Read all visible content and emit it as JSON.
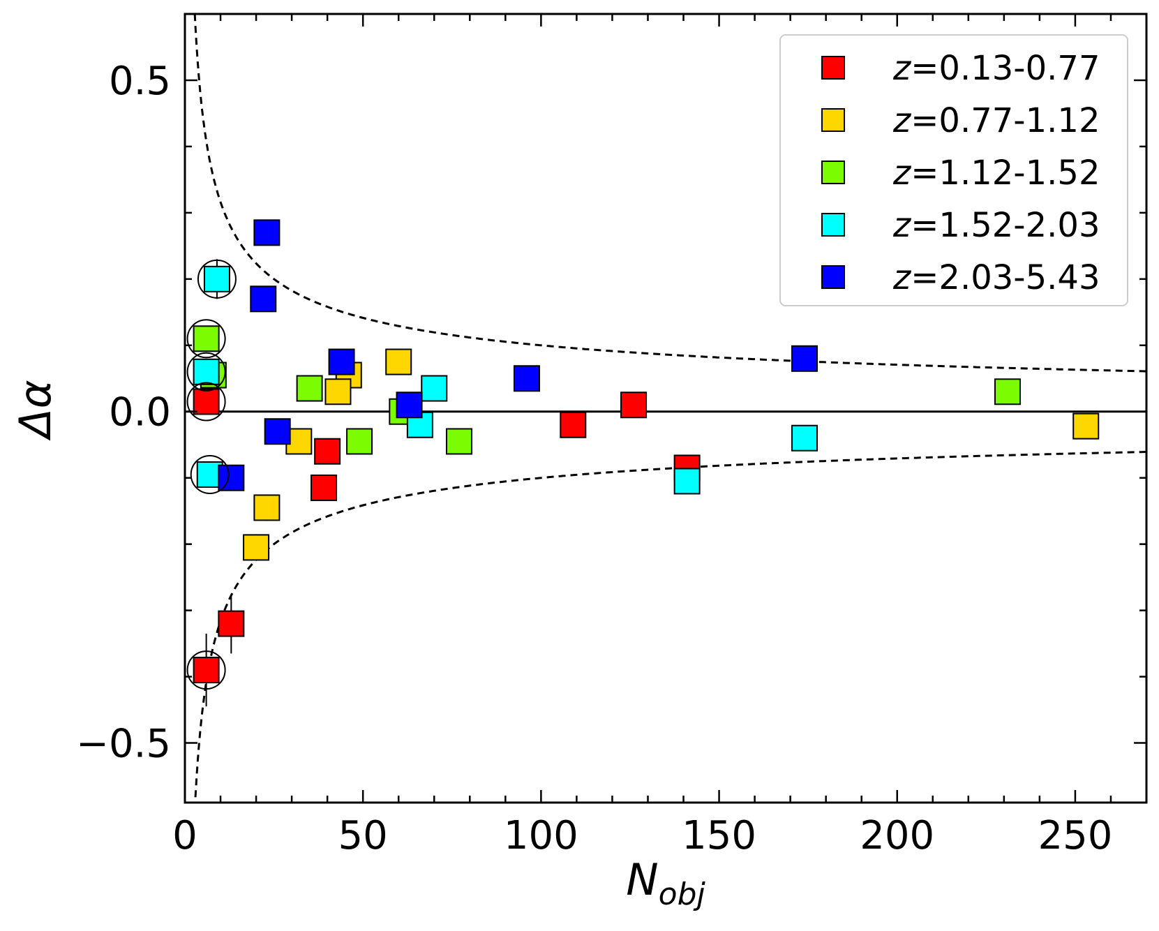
{
  "chart_data": {
    "type": "scatter",
    "title": "",
    "xlabel": "N",
    "xlabel_sub": "obj",
    "ylabel": "Δα",
    "xlim": [
      0,
      270
    ],
    "ylim": [
      -0.59,
      0.6
    ],
    "x_ticks": [
      0,
      50,
      100,
      150,
      200,
      250
    ],
    "x_tick_labels": [
      "0",
      "50",
      "100",
      "150",
      "200",
      "250"
    ],
    "y_ticks": [
      0.5,
      0.0,
      -0.5
    ],
    "y_tick_labels": [
      "0.5",
      "0.0",
      "−0.5"
    ],
    "grid": false,
    "legend_position": "top-right",
    "reference_line": {
      "y": 0.0
    },
    "envelope_curve": {
      "form": "±A/sqrt(x)",
      "A": 1.0
    },
    "series": [
      {
        "name": "z=0.13-0.77",
        "color": "#ff0000",
        "points": [
          {
            "x": 6,
            "y": 0.015
          },
          {
            "x": 13,
            "y": -0.32
          },
          {
            "x": 6,
            "y": -0.39
          },
          {
            "x": 40,
            "y": -0.06
          },
          {
            "x": 39,
            "y": -0.115
          },
          {
            "x": 109,
            "y": -0.02
          },
          {
            "x": 126,
            "y": 0.01
          },
          {
            "x": 141,
            "y": -0.085
          }
        ]
      },
      {
        "name": "z=0.77-1.12",
        "color": "#ffd700",
        "points": [
          {
            "x": 46,
            "y": 0.055
          },
          {
            "x": 43,
            "y": 0.03
          },
          {
            "x": 60,
            "y": 0.075
          },
          {
            "x": 32,
            "y": -0.045
          },
          {
            "x": 23,
            "y": -0.145
          },
          {
            "x": 20,
            "y": -0.205
          },
          {
            "x": 253,
            "y": -0.022
          }
        ]
      },
      {
        "name": "z=1.12-1.52",
        "color": "#7cfc00",
        "points": [
          {
            "x": 6,
            "y": 0.11
          },
          {
            "x": 8,
            "y": 0.055
          },
          {
            "x": 35,
            "y": 0.035
          },
          {
            "x": 61,
            "y": 0.0
          },
          {
            "x": 49,
            "y": -0.045
          },
          {
            "x": 77,
            "y": -0.045
          },
          {
            "x": 231,
            "y": 0.03
          }
        ]
      },
      {
        "name": "z=1.52-2.03",
        "color": "#00ffff",
        "points": [
          {
            "x": 9,
            "y": 0.2
          },
          {
            "x": 6,
            "y": 0.06
          },
          {
            "x": 7,
            "y": -0.095
          },
          {
            "x": 70,
            "y": 0.035
          },
          {
            "x": 66,
            "y": -0.02
          },
          {
            "x": 141,
            "y": -0.105
          },
          {
            "x": 174,
            "y": -0.04
          }
        ]
      },
      {
        "name": "z=2.03-5.43",
        "color": "#0000ff",
        "points": [
          {
            "x": 23,
            "y": 0.27
          },
          {
            "x": 22,
            "y": 0.17
          },
          {
            "x": 44,
            "y": 0.075
          },
          {
            "x": 26,
            "y": -0.03
          },
          {
            "x": 13,
            "y": -0.1
          },
          {
            "x": 63,
            "y": 0.01
          },
          {
            "x": 96,
            "y": 0.05
          },
          {
            "x": 174,
            "y": 0.08
          }
        ]
      }
    ],
    "circled_points": [
      {
        "x": 9,
        "y": 0.2
      },
      {
        "x": 6,
        "y": 0.11
      },
      {
        "x": 6,
        "y": 0.06
      },
      {
        "x": 6,
        "y": 0.015
      },
      {
        "x": 7,
        "y": -0.095
      },
      {
        "x": 6,
        "y": -0.39
      }
    ],
    "error_bars": [
      {
        "x": 9,
        "y": 0.2,
        "err": 0.03
      },
      {
        "x": 13,
        "y": -0.32,
        "err": 0.045
      },
      {
        "x": 6,
        "y": -0.39,
        "err": 0.055
      },
      {
        "x": 23,
        "y": -0.145,
        "err": 0.02
      },
      {
        "x": 20,
        "y": -0.205,
        "err": 0.02
      }
    ]
  }
}
